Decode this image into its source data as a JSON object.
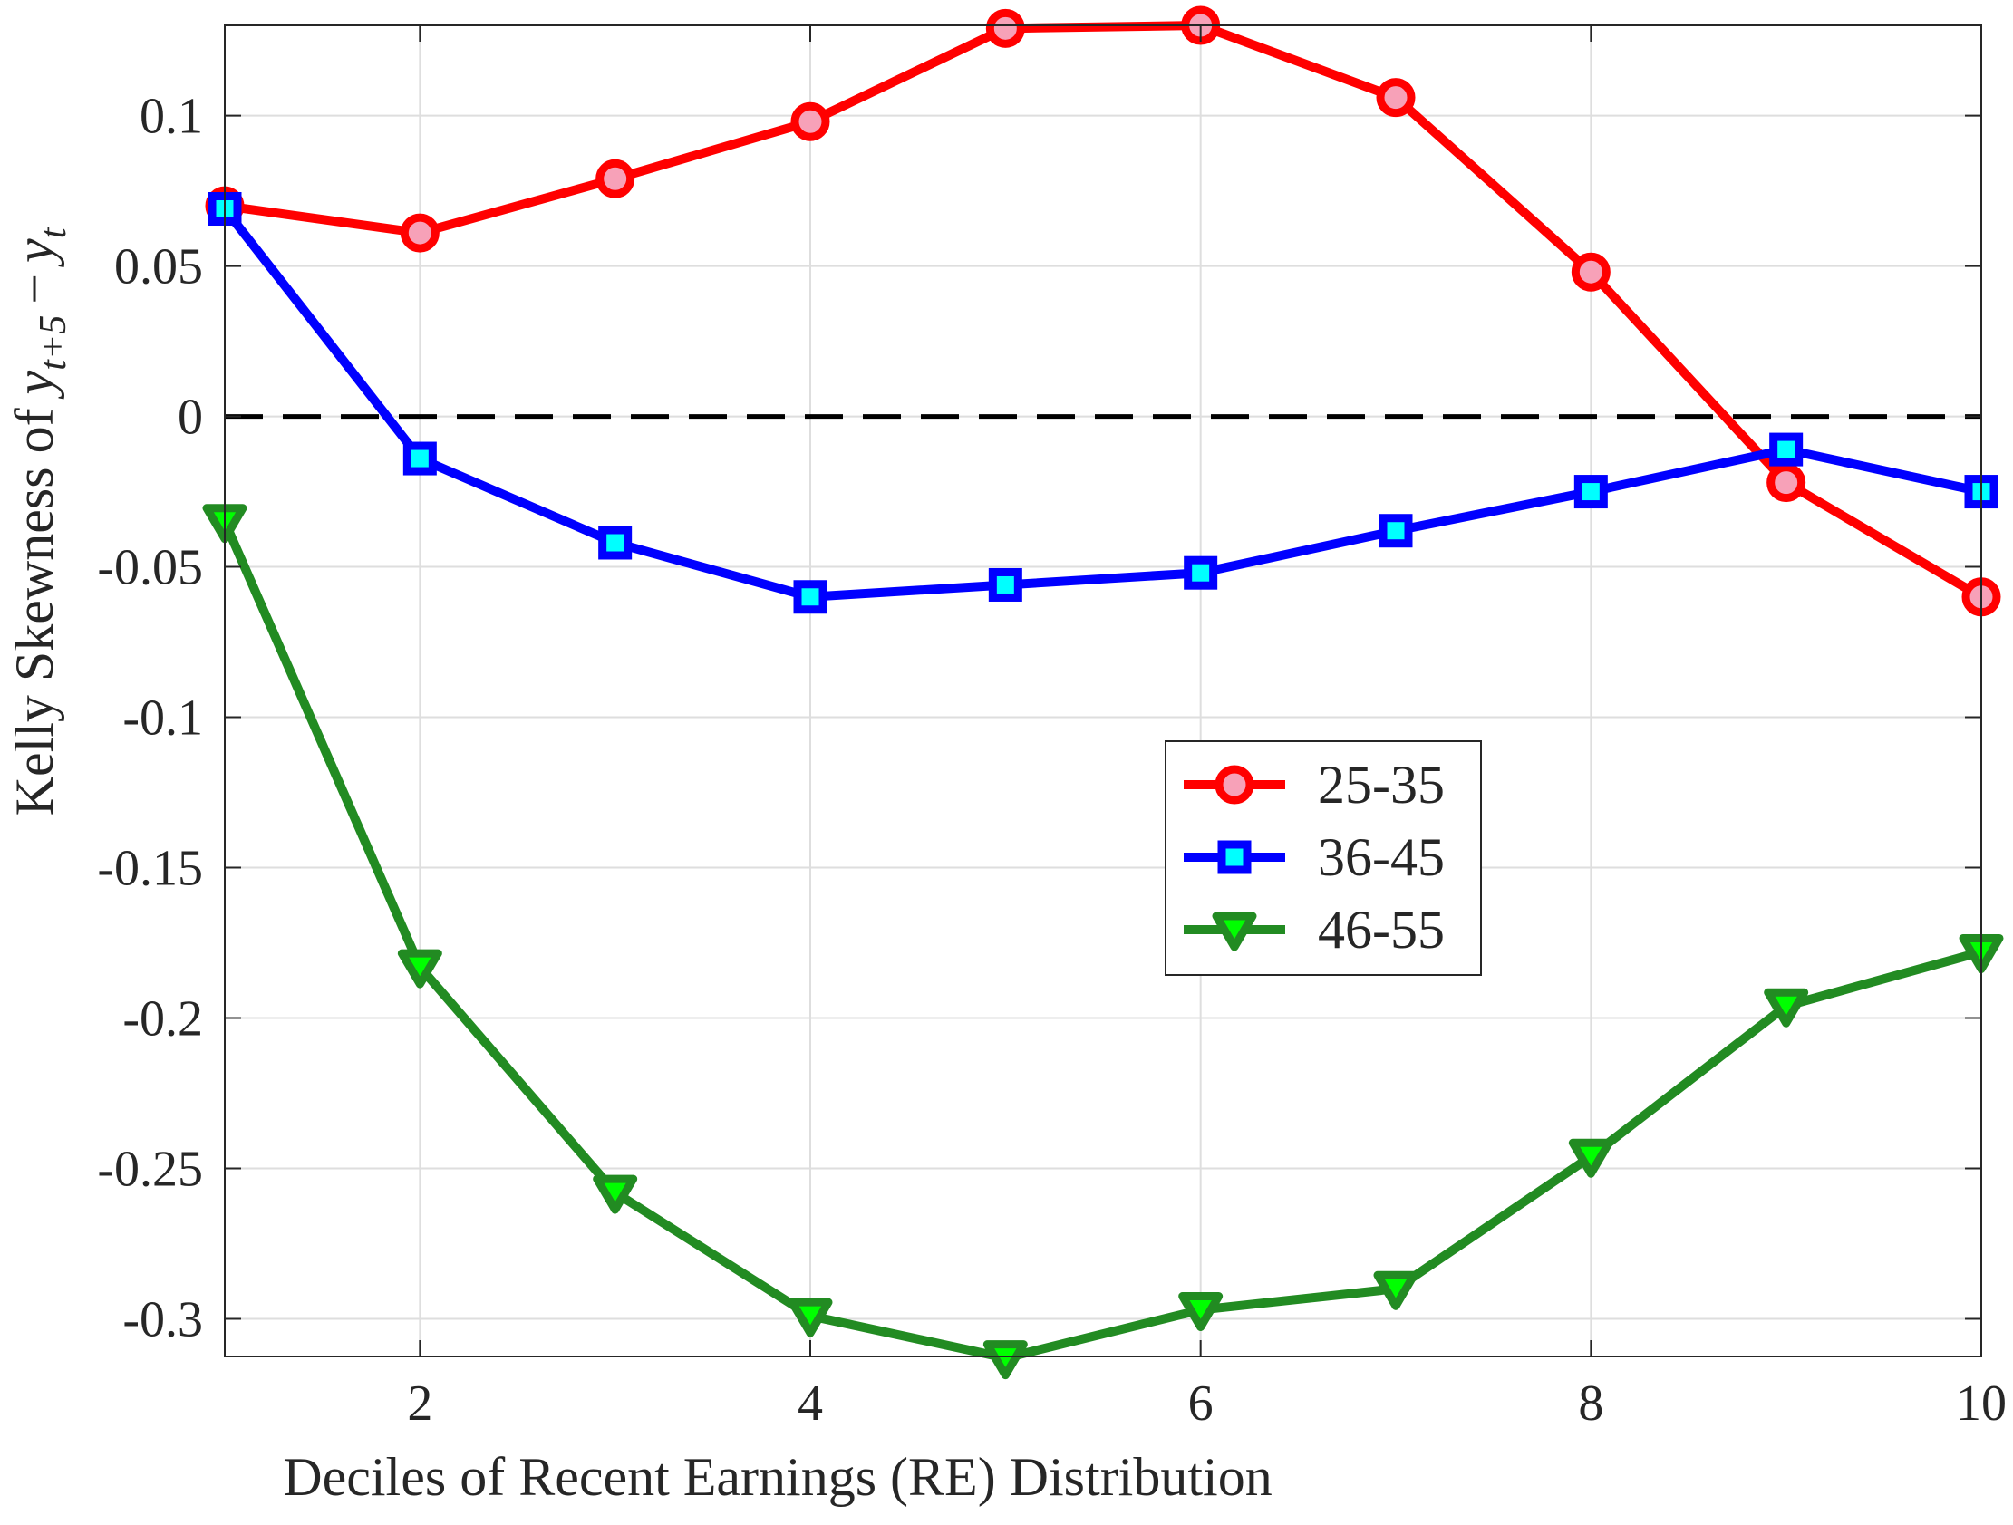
{
  "chart_data": {
    "type": "line",
    "title": "",
    "xlabel": "Deciles of Recent Earnings (RE) Distribution",
    "ylabel_prefix": "Kelly Skewness of ",
    "ylabel_math": {
      "var": "y",
      "sub1": "t+5",
      "minus": "−",
      "sub2": "t"
    },
    "xlim": [
      1,
      10
    ],
    "ylim": [
      -0.3125,
      0.13
    ],
    "xticks": [
      2,
      4,
      6,
      8,
      10
    ],
    "xtick_labels": [
      "2",
      "4",
      "6",
      "8",
      "10"
    ],
    "yticks": [
      0.1,
      0.05,
      0,
      -0.05,
      -0.1,
      -0.15,
      -0.2,
      -0.25,
      -0.3
    ],
    "ytick_labels": [
      "0.1",
      "0.05",
      "0",
      "-0.05",
      "-0.1",
      "-0.15",
      "-0.2",
      "-0.25",
      "-0.3"
    ],
    "grid": true,
    "reference_line": {
      "y": 0,
      "style": "dashed",
      "color": "#000000"
    },
    "legend_position": "center-right",
    "x": [
      1,
      2,
      3,
      4,
      5,
      6,
      7,
      8,
      9,
      10
    ],
    "series": [
      {
        "name": "25-35",
        "marker": "circle",
        "color": "#ff0000",
        "marker_fill": "#f7a1b8",
        "values": [
          0.07,
          0.061,
          0.079,
          0.098,
          0.129,
          0.13,
          0.106,
          0.048,
          -0.022,
          -0.06
        ]
      },
      {
        "name": "36-45",
        "marker": "square",
        "color": "#0000ff",
        "marker_fill": "#00ffff",
        "values": [
          0.069,
          -0.014,
          -0.042,
          -0.06,
          -0.056,
          -0.052,
          -0.038,
          -0.025,
          -0.011,
          -0.025
        ]
      },
      {
        "name": "46-55",
        "marker": "triangle-down",
        "color": "#228b22",
        "marker_fill": "#00ff00",
        "values": [
          -0.035,
          -0.183,
          -0.258,
          -0.299,
          -0.313,
          -0.297,
          -0.29,
          -0.246,
          -0.196,
          -0.178
        ]
      }
    ]
  }
}
